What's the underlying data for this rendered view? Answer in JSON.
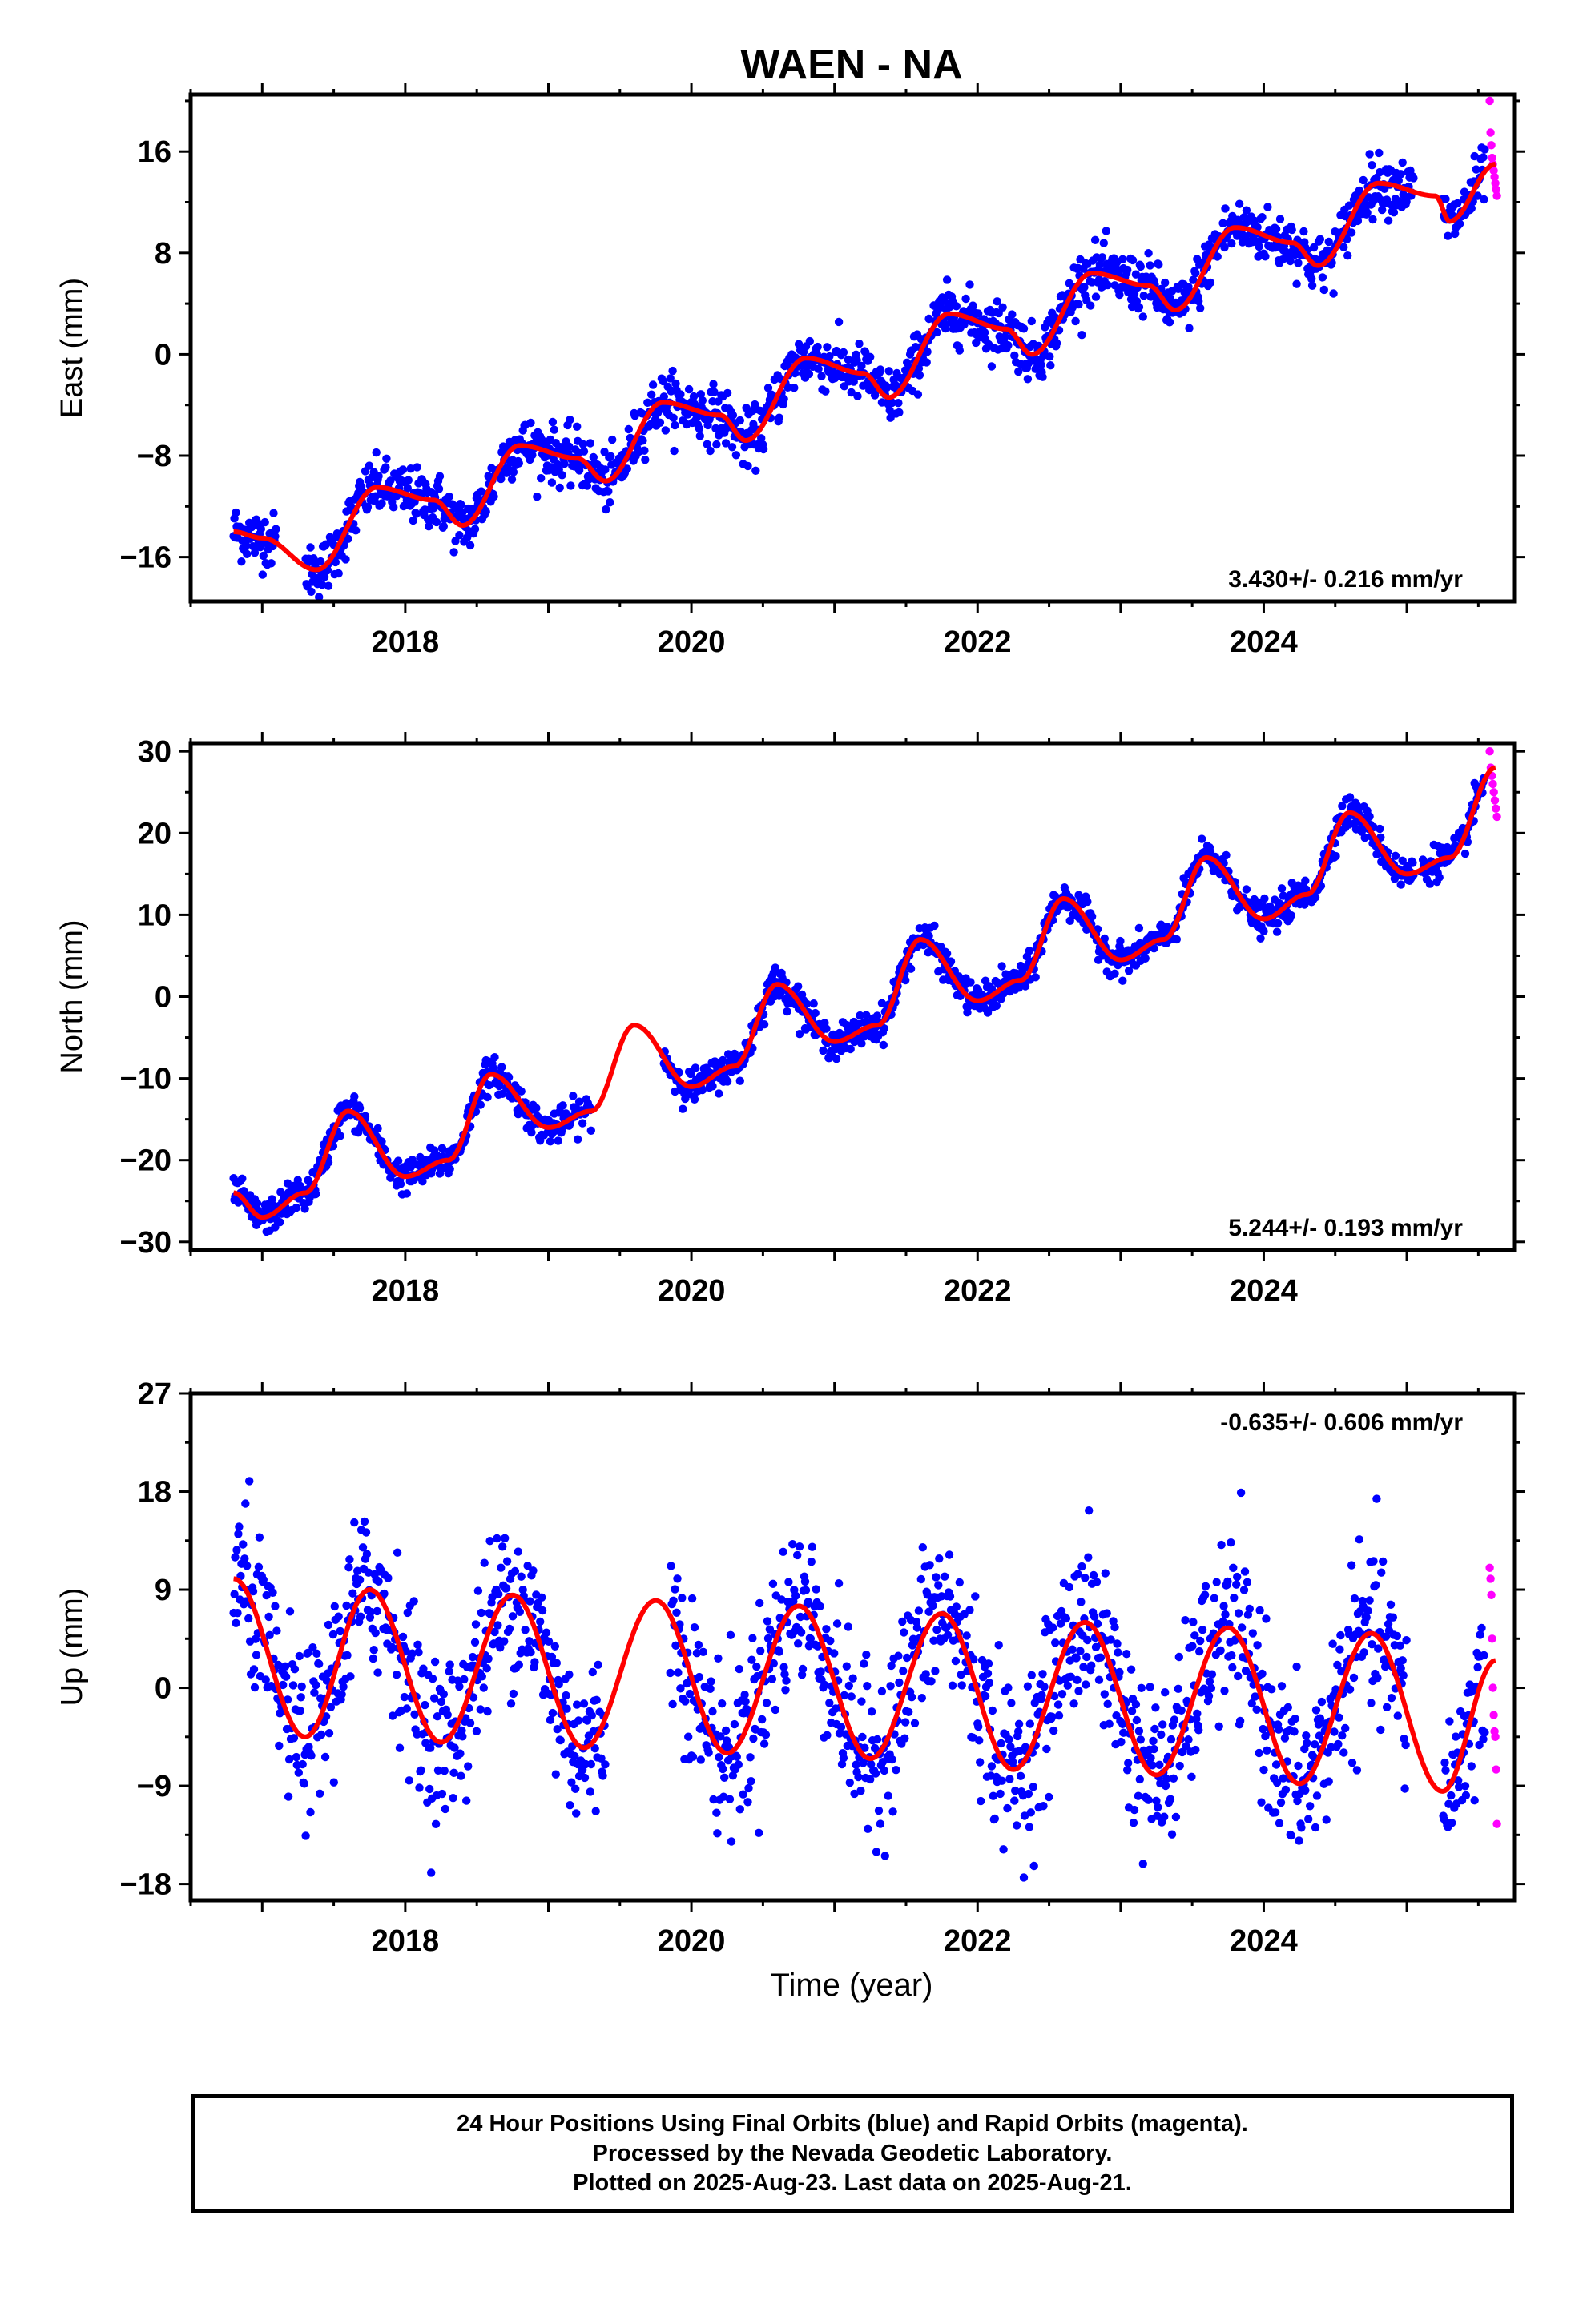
{
  "title": "WAEN - NA",
  "xlabel": "Time (year)",
  "colors": {
    "final": "#0000ff",
    "rapid": "#ff00ff",
    "model": "#ff0000",
    "frame": "#000000"
  },
  "footer": {
    "line1": "24 Hour Positions Using Final Orbits (blue) and Rapid Orbits (magenta).",
    "line2": "Processed by the Nevada Geodetic Laboratory.",
    "line3": "Plotted on 2025-Aug-23. Last data on 2025-Aug-21."
  },
  "chart_data": [
    {
      "type": "scatter",
      "name": "east",
      "ylabel": "East (mm)",
      "rate_label": "3.430+/- 0.216 mm/yr",
      "xlim": [
        2016.5,
        2025.75
      ],
      "ylim": [
        -19.5,
        20.5
      ],
      "xticks": [
        2018,
        2020,
        2022,
        2024
      ],
      "yticks": [
        -16,
        -8,
        0,
        8,
        16
      ],
      "rate": 3.43,
      "annual_amp": 1.7,
      "noise": 1.1,
      "final_range": [
        2016.8,
        2025.55
      ],
      "rapid_range": [
        2025.58,
        2025.63
      ],
      "rapid_values": [
        20,
        17.5,
        16.5,
        15.5,
        15,
        14.5,
        14,
        13.5,
        13,
        12.5
      ],
      "gaps": [
        [
          2017.1,
          2017.3
        ],
        [
          2025.05,
          2025.25
        ]
      ],
      "model_x": [
        2016.8,
        2017.0,
        2017.38,
        2017.8,
        2018.2,
        2018.4,
        2018.8,
        2019.2,
        2019.4,
        2019.8,
        2020.2,
        2020.38,
        2020.8,
        2021.2,
        2021.38,
        2021.8,
        2022.2,
        2022.38,
        2022.8,
        2023.2,
        2023.38,
        2023.8,
        2024.2,
        2024.38,
        2024.8,
        2025.2,
        2025.3,
        2025.62
      ],
      "model_y": [
        -14,
        -14.5,
        -17,
        -10.5,
        -11.5,
        -13.5,
        -7.2,
        -8.2,
        -10,
        -3.8,
        -4.8,
        -6.8,
        -0.3,
        -1.5,
        -3.4,
        3.2,
        2,
        0,
        6.4,
        5.4,
        3.5,
        10,
        8.8,
        7,
        13.5,
        12.5,
        10.5,
        15
      ]
    },
    {
      "type": "scatter",
      "name": "north",
      "ylabel": "North (mm)",
      "rate_label": "5.244+/- 0.193 mm/yr",
      "xlim": [
        2016.5,
        2025.75
      ],
      "ylim": [
        -31,
        31
      ],
      "xticks": [
        2018,
        2020,
        2022,
        2024
      ],
      "yticks": [
        -30,
        -20,
        -10,
        0,
        10,
        20,
        30
      ],
      "rate": 5.244,
      "annual_amp": 3.5,
      "noise": 1.0,
      "final_range": [
        2016.8,
        2025.55
      ],
      "rapid_range": [
        2025.58,
        2025.63
      ],
      "rapid_values": [
        30,
        28,
        27,
        26,
        25,
        24,
        23,
        22
      ],
      "gaps": [
        [
          2019.3,
          2019.8
        ],
        [
          2025.05,
          2025.1
        ]
      ],
      "model_x": [
        2016.8,
        2017.0,
        2017.3,
        2017.6,
        2018.0,
        2018.3,
        2018.6,
        2019.0,
        2019.3,
        2019.6,
        2020.0,
        2020.3,
        2020.6,
        2021.0,
        2021.3,
        2021.6,
        2022.0,
        2022.3,
        2022.6,
        2023.0,
        2023.3,
        2023.6,
        2024.0,
        2024.3,
        2024.6,
        2025.0,
        2025.3,
        2025.62
      ],
      "model_y": [
        -24,
        -27,
        -24,
        -14,
        -22,
        -20,
        -9.5,
        -16,
        -14,
        -3.5,
        -11,
        -8.5,
        1.5,
        -5.5,
        -3.5,
        7,
        -0.5,
        2,
        12,
        4.5,
        7,
        17,
        9.5,
        12.5,
        22.5,
        15,
        17,
        28
      ]
    },
    {
      "type": "scatter",
      "name": "up",
      "ylabel": "Up (mm)",
      "rate_label": "-0.635+/- 0.606 mm/yr",
      "xlim": [
        2016.5,
        2025.75
      ],
      "ylim": [
        -19.5,
        27
      ],
      "xticks": [
        2018,
        2020,
        2022,
        2024
      ],
      "yticks": [
        -18,
        -9,
        0,
        9,
        18,
        27
      ],
      "rate": -0.635,
      "annual_amp": 7.5,
      "noise": 3.8,
      "final_range": [
        2016.8,
        2025.55
      ],
      "rapid_range": [
        2025.58,
        2025.63
      ],
      "rapid_values": [
        11,
        10,
        8.5,
        4.5,
        0,
        -2.5,
        -4,
        -4.5,
        -7.5,
        -12.5
      ],
      "gaps": [
        [
          2019.4,
          2019.85
        ],
        [
          2025.0,
          2025.25
        ]
      ],
      "model_x": [
        2016.8,
        2017.3,
        2017.75,
        2018.25,
        2018.75,
        2019.25,
        2019.75,
        2020.25,
        2020.75,
        2021.25,
        2021.75,
        2022.25,
        2022.75,
        2023.25,
        2023.75,
        2024.25,
        2024.75,
        2025.25,
        2025.62
      ],
      "model_y": [
        10,
        -4.5,
        9,
        -5,
        8.5,
        -5.5,
        8,
        -6,
        7.5,
        -6.5,
        6.8,
        -7.5,
        6,
        -8,
        5.5,
        -8.8,
        5,
        -9.5,
        2.5
      ]
    }
  ]
}
